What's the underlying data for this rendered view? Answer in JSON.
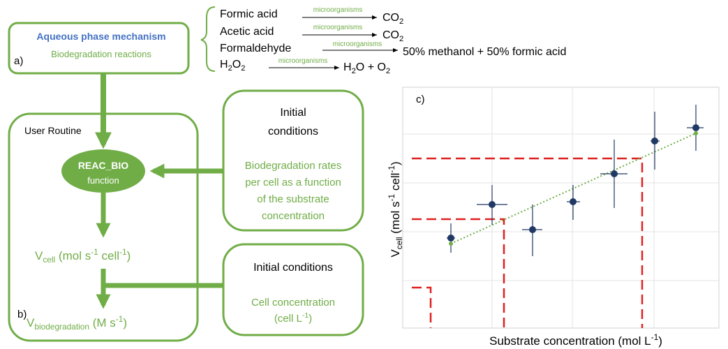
{
  "aqueous_box": {
    "title": "Aqueous phase mechanism",
    "subtitle": "Biodegradation reactions",
    "label": "a)"
  },
  "reactions": [
    {
      "reactant": [
        "Formic acid"
      ],
      "catalyst": "microorganisms",
      "product": [
        "CO",
        "2"
      ]
    },
    {
      "reactant": [
        "Acetic acid"
      ],
      "catalyst": "microorganisms",
      "product": [
        "CO",
        "2"
      ]
    },
    {
      "reactant": [
        "Formaldehyde"
      ],
      "catalyst": "microorganisms",
      "product": [
        "50% methanol + 50% formic acid"
      ]
    },
    {
      "reactant": [
        "H",
        "2",
        "O",
        "2"
      ],
      "catalyst": "microorganisms",
      "product": [
        "H",
        "2",
        "O + O",
        "2"
      ]
    }
  ],
  "routine": {
    "title": "User Routine",
    "function_name": "REAC_BIO",
    "function_word": "function",
    "label": "b)",
    "v_cell": [
      "V",
      "cell",
      " (mol s",
      "-1",
      " cell",
      "-1",
      ")"
    ],
    "v_biodegradation": [
      "V",
      "biodegradation",
      " (M s",
      "-1",
      ")"
    ]
  },
  "initial_conditions_1": {
    "title": [
      "Initial",
      "conditions"
    ],
    "text": [
      "Biodegradation rates",
      "per cell as a function",
      "of the substrate",
      "concentration"
    ]
  },
  "initial_conditions_2": {
    "title": "Initial conditions",
    "text": [
      "Cell concentration",
      "(cell L",
      "-1",
      ")"
    ]
  },
  "plot": {
    "label": "c)",
    "y_label": [
      "V",
      "cell",
      " (mol s",
      "-1",
      " cell",
      "-1",
      ")"
    ],
    "x_label": [
      "Substrate concentration  (mol L",
      "-1",
      ")"
    ]
  }
}
